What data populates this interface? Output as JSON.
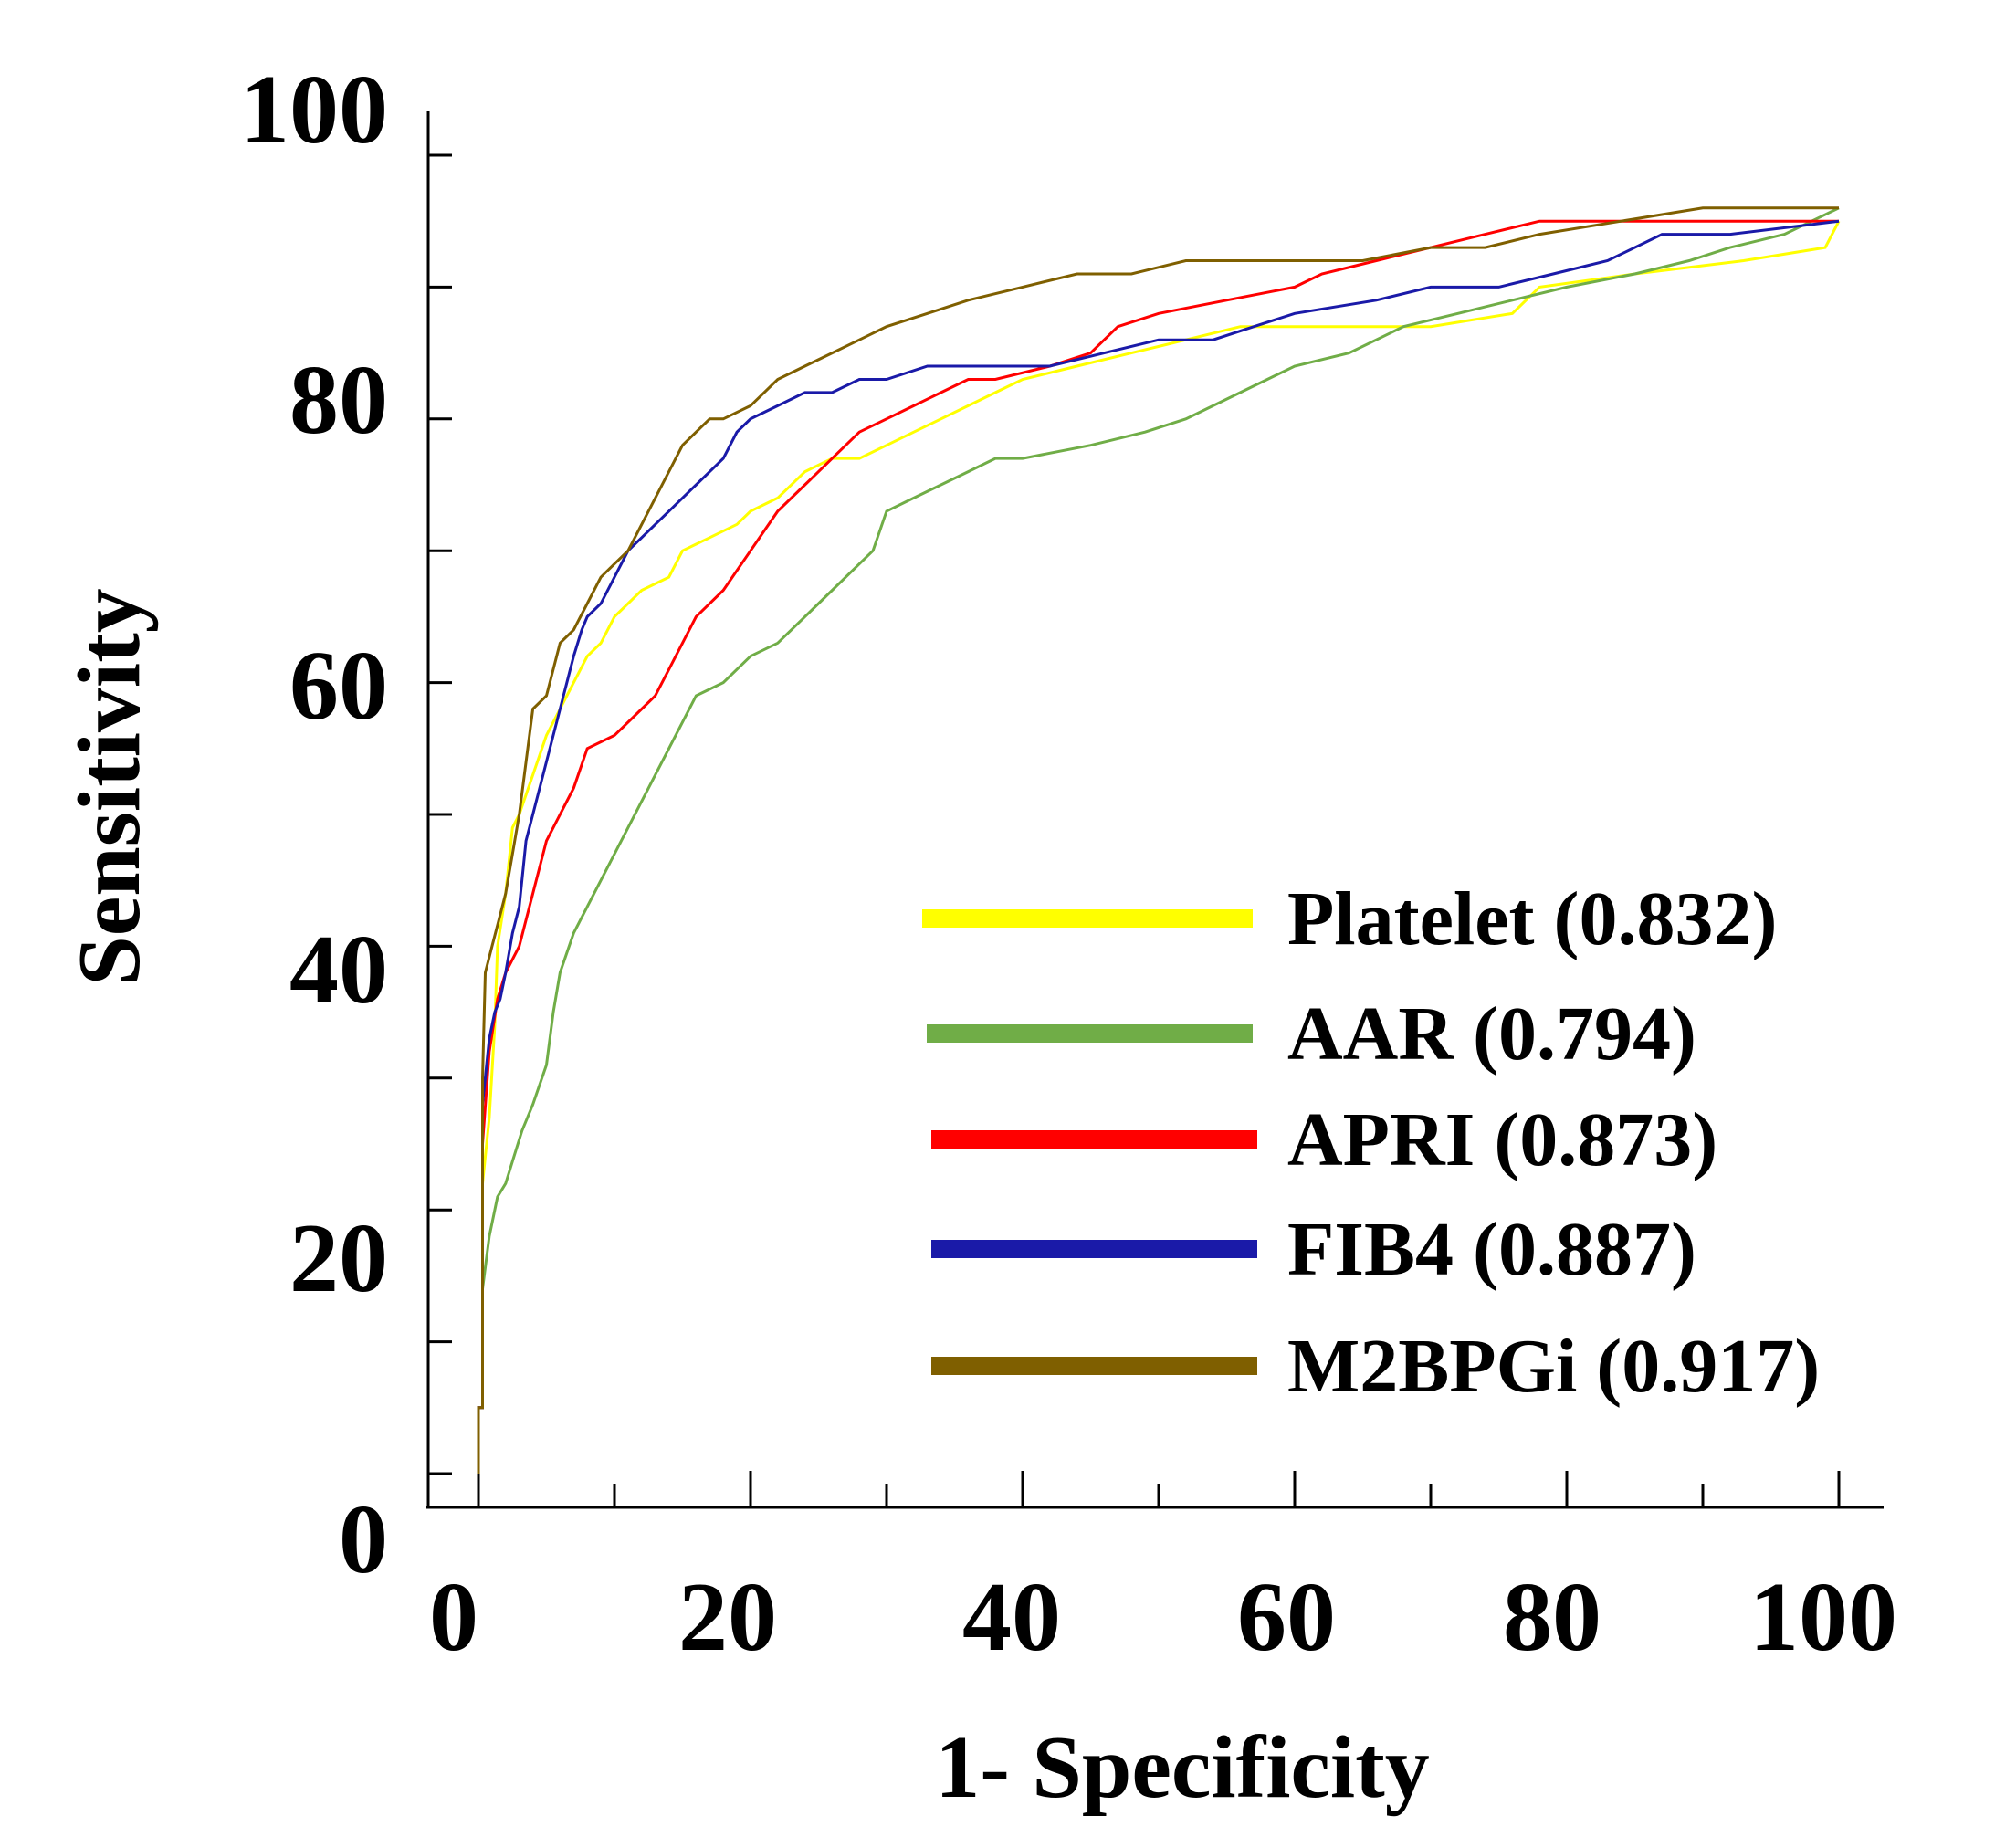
{
  "chart_data": {
    "type": "line",
    "title": "",
    "xlabel": "1- Specificity",
    "ylabel": "Sensitivity",
    "xlim": [
      0,
      100
    ],
    "ylim": [
      0,
      100
    ],
    "x_ticks": [
      "0",
      "20",
      "40",
      "60",
      "80",
      "100"
    ],
    "y_ticks": [
      "0",
      "20",
      "40",
      "60",
      "80",
      "100"
    ],
    "legend_position": "bottom-right",
    "series": [
      {
        "name": "Platelet",
        "auc": "(0.832)",
        "label": "Platelet (0.832)",
        "color": "#ffff00",
        "points": [
          [
            0,
            0
          ],
          [
            0,
            5
          ],
          [
            0.3,
            5
          ],
          [
            0.3,
            22
          ],
          [
            0.8,
            27
          ],
          [
            1.2,
            34
          ],
          [
            1.4,
            40
          ],
          [
            2,
            44
          ],
          [
            2.5,
            49
          ],
          [
            3,
            50
          ],
          [
            4,
            53
          ],
          [
            5,
            56
          ],
          [
            6,
            58
          ],
          [
            7,
            60
          ],
          [
            8,
            62
          ],
          [
            9,
            63
          ],
          [
            10,
            65
          ],
          [
            12,
            67
          ],
          [
            14,
            68
          ],
          [
            15,
            70
          ],
          [
            17,
            71
          ],
          [
            19,
            72
          ],
          [
            20,
            73
          ],
          [
            22,
            74
          ],
          [
            24,
            76
          ],
          [
            26,
            77
          ],
          [
            28,
            77
          ],
          [
            30,
            78
          ],
          [
            32,
            79
          ],
          [
            34,
            80
          ],
          [
            36,
            81
          ],
          [
            38,
            82
          ],
          [
            40,
            83
          ],
          [
            44,
            84
          ],
          [
            48,
            85
          ],
          [
            52,
            86
          ],
          [
            56,
            87
          ],
          [
            60,
            87
          ],
          [
            70,
            87
          ],
          [
            76,
            88
          ],
          [
            78,
            90
          ],
          [
            85,
            91
          ],
          [
            93,
            92
          ],
          [
            99,
            93
          ],
          [
            100,
            95
          ]
        ]
      },
      {
        "name": "AAR",
        "auc": "(0.794)",
        "label": "AAR (0.794)",
        "color": "#70ad47",
        "points": [
          [
            0,
            0
          ],
          [
            0,
            5
          ],
          [
            0.3,
            5
          ],
          [
            0.3,
            14
          ],
          [
            0.8,
            18
          ],
          [
            1.4,
            21
          ],
          [
            2,
            22
          ],
          [
            2.6,
            24
          ],
          [
            3.2,
            26
          ],
          [
            4,
            28
          ],
          [
            5,
            31
          ],
          [
            5.5,
            35
          ],
          [
            6,
            38
          ],
          [
            7,
            41
          ],
          [
            8,
            43
          ],
          [
            9,
            45
          ],
          [
            10,
            47
          ],
          [
            11,
            49
          ],
          [
            12,
            51
          ],
          [
            13,
            53
          ],
          [
            14,
            55
          ],
          [
            15,
            57
          ],
          [
            16,
            59
          ],
          [
            18,
            60
          ],
          [
            20,
            62
          ],
          [
            22,
            63
          ],
          [
            24,
            65
          ],
          [
            26,
            67
          ],
          [
            28,
            69
          ],
          [
            29,
            70
          ],
          [
            30,
            73
          ],
          [
            32,
            74
          ],
          [
            34,
            75
          ],
          [
            36,
            76
          ],
          [
            38,
            77
          ],
          [
            40,
            77
          ],
          [
            45,
            78
          ],
          [
            49,
            79
          ],
          [
            52,
            80
          ],
          [
            56,
            82
          ],
          [
            60,
            84
          ],
          [
            64,
            85
          ],
          [
            68,
            87
          ],
          [
            72,
            88
          ],
          [
            76,
            89
          ],
          [
            80,
            90
          ],
          [
            85,
            91
          ],
          [
            89,
            92
          ],
          [
            92,
            93
          ],
          [
            96,
            94
          ],
          [
            98,
            95
          ],
          [
            100,
            96
          ]
        ]
      },
      {
        "name": "APRI",
        "auc": "(0.873)",
        "label": "APRI (0.873)",
        "color": "#ff0000",
        "points": [
          [
            0,
            0
          ],
          [
            0,
            5
          ],
          [
            0.3,
            5
          ],
          [
            0.3,
            25
          ],
          [
            0.8,
            32
          ],
          [
            1.4,
            36
          ],
          [
            2,
            38
          ],
          [
            3,
            40
          ],
          [
            4,
            44
          ],
          [
            5,
            48
          ],
          [
            6,
            50
          ],
          [
            7,
            52
          ],
          [
            8,
            55
          ],
          [
            10,
            56
          ],
          [
            12,
            58
          ],
          [
            13,
            59
          ],
          [
            14,
            61
          ],
          [
            15,
            63
          ],
          [
            16,
            65
          ],
          [
            18,
            67
          ],
          [
            20,
            70
          ],
          [
            22,
            73
          ],
          [
            24,
            75
          ],
          [
            26,
            77
          ],
          [
            28,
            79
          ],
          [
            30,
            80
          ],
          [
            32,
            81
          ],
          [
            34,
            82
          ],
          [
            36,
            83
          ],
          [
            38,
            83
          ],
          [
            42,
            84
          ],
          [
            45,
            85
          ],
          [
            47,
            87
          ],
          [
            50,
            88
          ],
          [
            55,
            89
          ],
          [
            60,
            90
          ],
          [
            62,
            91
          ],
          [
            66,
            92
          ],
          [
            70,
            93
          ],
          [
            74,
            94
          ],
          [
            78,
            95
          ],
          [
            80,
            95
          ],
          [
            85,
            95
          ],
          [
            90,
            95
          ],
          [
            100,
            95
          ]
        ]
      },
      {
        "name": "FIB4",
        "auc": "(0.887)",
        "label": "FIB4 (0.887)",
        "color": "#1a1aa8",
        "points": [
          [
            0,
            0
          ],
          [
            0,
            5
          ],
          [
            0.3,
            5
          ],
          [
            0.3,
            28
          ],
          [
            0.8,
            33
          ],
          [
            1.2,
            35
          ],
          [
            1.6,
            36
          ],
          [
            2,
            38
          ],
          [
            2.5,
            41
          ],
          [
            3,
            43
          ],
          [
            3.5,
            48
          ],
          [
            4,
            50
          ],
          [
            5,
            54
          ],
          [
            6,
            58
          ],
          [
            7,
            62
          ],
          [
            7.6,
            64
          ],
          [
            8,
            65
          ],
          [
            9,
            66
          ],
          [
            10,
            68
          ],
          [
            11,
            70
          ],
          [
            12,
            71
          ],
          [
            13,
            72
          ],
          [
            14,
            73
          ],
          [
            15,
            74
          ],
          [
            16,
            75
          ],
          [
            17,
            76
          ],
          [
            18,
            77
          ],
          [
            19,
            79
          ],
          [
            20,
            80
          ],
          [
            22,
            81
          ],
          [
            24,
            82
          ],
          [
            26,
            82
          ],
          [
            28,
            83
          ],
          [
            30,
            83
          ],
          [
            33,
            84
          ],
          [
            36,
            84
          ],
          [
            42,
            84
          ],
          [
            46,
            85
          ],
          [
            50,
            86
          ],
          [
            54,
            86
          ],
          [
            57,
            87
          ],
          [
            60,
            88
          ],
          [
            66,
            89
          ],
          [
            70,
            90
          ],
          [
            75,
            90
          ],
          [
            79,
            91
          ],
          [
            83,
            92
          ],
          [
            87,
            94
          ],
          [
            92,
            94
          ],
          [
            100,
            95
          ]
        ]
      },
      {
        "name": "M2BPGi",
        "auc": "(0.917)",
        "label": "M2BPGi (0.917)",
        "color": "#7f5f00",
        "points": [
          [
            0,
            0
          ],
          [
            0,
            5
          ],
          [
            0.3,
            5
          ],
          [
            0.3,
            30
          ],
          [
            0.5,
            38
          ],
          [
            1,
            40
          ],
          [
            1.5,
            42
          ],
          [
            2,
            44
          ],
          [
            2.5,
            47
          ],
          [
            3,
            50
          ],
          [
            4,
            58
          ],
          [
            5,
            59
          ],
          [
            6,
            63
          ],
          [
            7,
            64
          ],
          [
            8,
            66
          ],
          [
            9,
            68
          ],
          [
            10,
            69
          ],
          [
            11,
            70
          ],
          [
            12,
            72
          ],
          [
            13,
            74
          ],
          [
            14,
            76
          ],
          [
            15,
            78
          ],
          [
            16,
            79
          ],
          [
            17,
            80
          ],
          [
            18,
            80
          ],
          [
            20,
            81
          ],
          [
            22,
            83
          ],
          [
            24,
            84
          ],
          [
            26,
            85
          ],
          [
            28,
            86
          ],
          [
            30,
            87
          ],
          [
            33,
            88
          ],
          [
            36,
            89
          ],
          [
            40,
            90
          ],
          [
            44,
            91
          ],
          [
            48,
            91
          ],
          [
            52,
            92
          ],
          [
            56,
            92
          ],
          [
            60,
            92
          ],
          [
            65,
            92
          ],
          [
            70,
            93
          ],
          [
            74,
            93
          ],
          [
            78,
            94
          ],
          [
            84,
            95
          ],
          [
            90,
            96
          ],
          [
            100,
            96
          ]
        ]
      }
    ]
  }
}
